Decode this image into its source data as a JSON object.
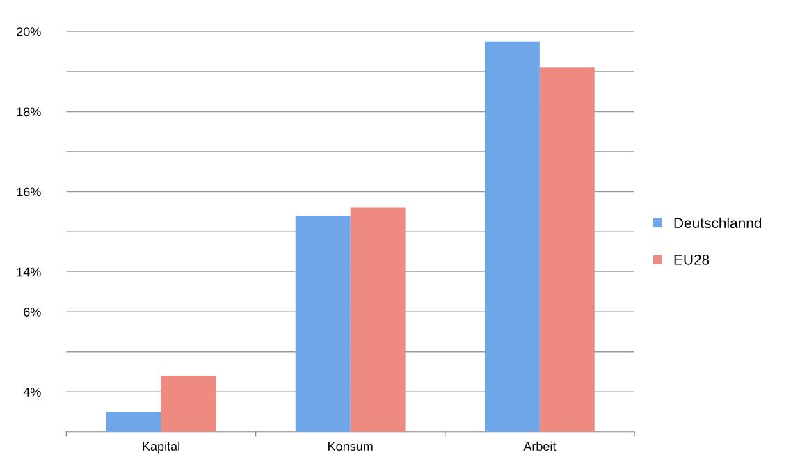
{
  "chart_data": [
    {
      "type": "bar",
      "series": [
        {
          "name": "Deutschlannd",
          "color": "#6fa6ea",
          "values": [
            null,
            15.4,
            19.75
          ]
        },
        {
          "name": "EU28",
          "color": "#ee8a80",
          "values": [
            null,
            15.6,
            19.1
          ]
        }
      ],
      "ylim": [
        14,
        20
      ],
      "yticks": [
        {
          "value": 14,
          "label": "14%"
        },
        {
          "value": 15,
          "label": null
        },
        {
          "value": 16,
          "label": "16%"
        },
        {
          "value": 17,
          "label": null
        },
        {
          "value": 18,
          "label": "18%"
        },
        {
          "value": 19,
          "label": null
        },
        {
          "value": 20,
          "label": "20%"
        }
      ],
      "grid": "y",
      "legend": "right",
      "tick_labels": "y"
    },
    {
      "type": "bar",
      "categories": [
        "Kapital",
        "Konsum",
        "Arbeit"
      ],
      "series": [
        {
          "color": "#6fa6ea",
          "values": [
            3.5,
            null,
            null
          ]
        },
        {
          "color": "#ee8a80",
          "values": [
            4.4,
            null,
            null
          ]
        }
      ],
      "ylim": [
        3,
        7
      ],
      "yticks": [
        {
          "value": 4,
          "label": "4%"
        },
        {
          "value": 5,
          "label": null
        },
        {
          "value": 6,
          "label": "6%"
        }
      ],
      "grid": "y"
    }
  ]
}
